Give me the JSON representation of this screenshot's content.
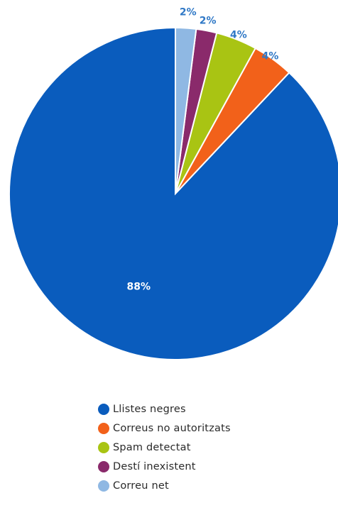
{
  "chart_data": {
    "type": "pie",
    "categories": [
      "Llistes negres",
      "Correus no autoritzats",
      "Spam detectat",
      "Destí inexistent",
      "Correu net"
    ],
    "values": [
      88,
      4,
      4,
      2,
      2
    ],
    "labels": [
      "88%",
      "4%",
      "4%",
      "2%",
      "2%"
    ],
    "colors": [
      "#0a5cbd",
      "#f2611a",
      "#a9c413",
      "#8a2a6b",
      "#8fb8e3"
    ],
    "start_angle_deg": 0,
    "direction": "counterclockwise",
    "legend_position": "bottom"
  }
}
